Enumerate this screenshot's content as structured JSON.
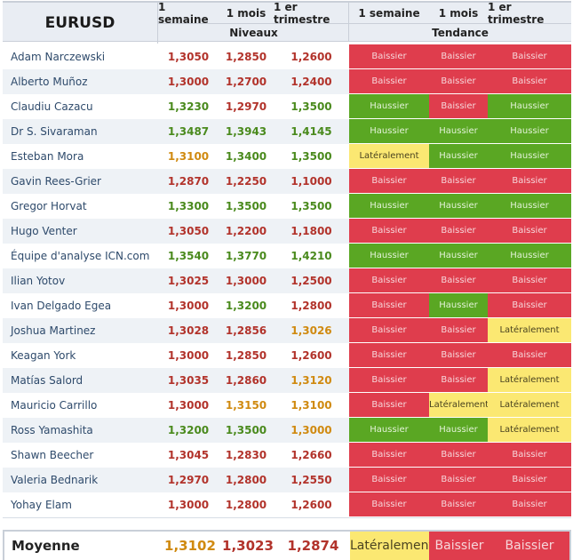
{
  "header": {
    "symbol": "EURUSD",
    "levels_group": "Niveaux",
    "trend_group": "Tendance",
    "columns": [
      "1 semaine",
      "1 mois",
      "1 er trimestre"
    ]
  },
  "colors": {
    "red": "#df3d4d",
    "green": "#5aa723",
    "yellow": "#fbe872",
    "text_red": "#b2332b",
    "text_green": "#4a8a1d",
    "text_orange": "#d08a10"
  },
  "rows": [
    {
      "name": "Adam Narczewski",
      "levels": [
        "1,3050",
        "1,2850",
        "1,2600"
      ],
      "level_tone": [
        "red",
        "red",
        "red"
      ],
      "trends": [
        "Baissier",
        "Baissier",
        "Baissier"
      ],
      "trend_tone": [
        "red",
        "red",
        "red"
      ]
    },
    {
      "name": "Alberto Muñoz",
      "levels": [
        "1,3000",
        "1,2700",
        "1,2400"
      ],
      "level_tone": [
        "red",
        "red",
        "red"
      ],
      "trends": [
        "Baissier",
        "Baissier",
        "Baissier"
      ],
      "trend_tone": [
        "red",
        "red",
        "red"
      ]
    },
    {
      "name": "Claudiu Cazacu",
      "levels": [
        "1,3230",
        "1,2970",
        "1,3500"
      ],
      "level_tone": [
        "green",
        "red",
        "green"
      ],
      "trends": [
        "Haussier",
        "Baissier",
        "Haussier"
      ],
      "trend_tone": [
        "green",
        "red",
        "green"
      ]
    },
    {
      "name": "Dr S. Sivaraman",
      "levels": [
        "1,3487",
        "1,3943",
        "1,4145"
      ],
      "level_tone": [
        "green",
        "green",
        "green"
      ],
      "trends": [
        "Haussier",
        "Haussier",
        "Haussier"
      ],
      "trend_tone": [
        "green",
        "green",
        "green"
      ]
    },
    {
      "name": "Esteban Mora",
      "levels": [
        "1,3100",
        "1,3400",
        "1,3500"
      ],
      "level_tone": [
        "orange",
        "green",
        "green"
      ],
      "trends": [
        "Latéralement",
        "Haussier",
        "Haussier"
      ],
      "trend_tone": [
        "yellow",
        "green",
        "green"
      ]
    },
    {
      "name": "Gavin Rees-Grier",
      "levels": [
        "1,2870",
        "1,2250",
        "1,1000"
      ],
      "level_tone": [
        "red",
        "red",
        "red"
      ],
      "trends": [
        "Baissier",
        "Baissier",
        "Baissier"
      ],
      "trend_tone": [
        "red",
        "red",
        "red"
      ]
    },
    {
      "name": "Gregor Horvat",
      "levels": [
        "1,3300",
        "1,3500",
        "1,3500"
      ],
      "level_tone": [
        "green",
        "green",
        "green"
      ],
      "trends": [
        "Haussier",
        "Haussier",
        "Haussier"
      ],
      "trend_tone": [
        "green",
        "green",
        "green"
      ]
    },
    {
      "name": "Hugo Venter",
      "levels": [
        "1,3050",
        "1,2200",
        "1,1800"
      ],
      "level_tone": [
        "red",
        "red",
        "red"
      ],
      "trends": [
        "Baissier",
        "Baissier",
        "Baissier"
      ],
      "trend_tone": [
        "red",
        "red",
        "red"
      ]
    },
    {
      "name": "Équipe d'analyse ICN.com",
      "levels": [
        "1,3540",
        "1,3770",
        "1,4210"
      ],
      "level_tone": [
        "green",
        "green",
        "green"
      ],
      "trends": [
        "Haussier",
        "Haussier",
        "Haussier"
      ],
      "trend_tone": [
        "green",
        "green",
        "green"
      ]
    },
    {
      "name": "Ilian Yotov",
      "levels": [
        "1,3025",
        "1,3000",
        "1,2500"
      ],
      "level_tone": [
        "red",
        "red",
        "red"
      ],
      "trends": [
        "Baissier",
        "Baissier",
        "Baissier"
      ],
      "trend_tone": [
        "red",
        "red",
        "red"
      ]
    },
    {
      "name": "Ivan Delgado Egea",
      "levels": [
        "1,3000",
        "1,3200",
        "1,2800"
      ],
      "level_tone": [
        "red",
        "green",
        "red"
      ],
      "trends": [
        "Baissier",
        "Haussier",
        "Baissier"
      ],
      "trend_tone": [
        "red",
        "green",
        "red"
      ]
    },
    {
      "name": "Joshua Martinez",
      "levels": [
        "1,3028",
        "1,2856",
        "1,3026"
      ],
      "level_tone": [
        "red",
        "red",
        "orange"
      ],
      "trends": [
        "Baissier",
        "Baissier",
        "Latéralement"
      ],
      "trend_tone": [
        "red",
        "red",
        "yellow"
      ]
    },
    {
      "name": "Keagan York",
      "levels": [
        "1,3000",
        "1,2850",
        "1,2600"
      ],
      "level_tone": [
        "red",
        "red",
        "red"
      ],
      "trends": [
        "Baissier",
        "Baissier",
        "Baissier"
      ],
      "trend_tone": [
        "red",
        "red",
        "red"
      ]
    },
    {
      "name": "Matías Salord",
      "levels": [
        "1,3035",
        "1,2860",
        "1,3120"
      ],
      "level_tone": [
        "red",
        "red",
        "orange"
      ],
      "trends": [
        "Baissier",
        "Baissier",
        "Latéralement"
      ],
      "trend_tone": [
        "red",
        "red",
        "yellow"
      ]
    },
    {
      "name": "Mauricio Carrillo",
      "levels": [
        "1,3000",
        "1,3150",
        "1,3100"
      ],
      "level_tone": [
        "red",
        "orange",
        "orange"
      ],
      "trends": [
        "Baissier",
        "Latéralement",
        "Latéralement"
      ],
      "trend_tone": [
        "red",
        "yellow",
        "yellow"
      ]
    },
    {
      "name": "Ross Yamashita",
      "levels": [
        "1,3200",
        "1,3500",
        "1,3000"
      ],
      "level_tone": [
        "green",
        "green",
        "orange"
      ],
      "trends": [
        "Haussier",
        "Haussier",
        "Latéralement"
      ],
      "trend_tone": [
        "green",
        "green",
        "yellow"
      ]
    },
    {
      "name": "Shawn Beecher",
      "levels": [
        "1,3045",
        "1,2830",
        "1,2660"
      ],
      "level_tone": [
        "red",
        "red",
        "red"
      ],
      "trends": [
        "Baissier",
        "Baissier",
        "Baissier"
      ],
      "trend_tone": [
        "red",
        "red",
        "red"
      ]
    },
    {
      "name": "Valeria Bednarik",
      "levels": [
        "1,2970",
        "1,2800",
        "1,2550"
      ],
      "level_tone": [
        "red",
        "red",
        "red"
      ],
      "trends": [
        "Baissier",
        "Baissier",
        "Baissier"
      ],
      "trend_tone": [
        "red",
        "red",
        "red"
      ]
    },
    {
      "name": "Yohay Elam",
      "levels": [
        "1,3000",
        "1,2800",
        "1,2600"
      ],
      "level_tone": [
        "red",
        "red",
        "red"
      ],
      "trends": [
        "Baissier",
        "Baissier",
        "Baissier"
      ],
      "trend_tone": [
        "red",
        "red",
        "red"
      ]
    }
  ],
  "average": {
    "label": "Moyenne",
    "levels": [
      "1,3102",
      "1,3023",
      "1,2874"
    ],
    "level_tone": [
      "orange",
      "red",
      "red"
    ],
    "trends": [
      "Latéralement",
      "Baissier",
      "Baissier"
    ],
    "trend_tone": [
      "yellow",
      "red",
      "red"
    ]
  }
}
